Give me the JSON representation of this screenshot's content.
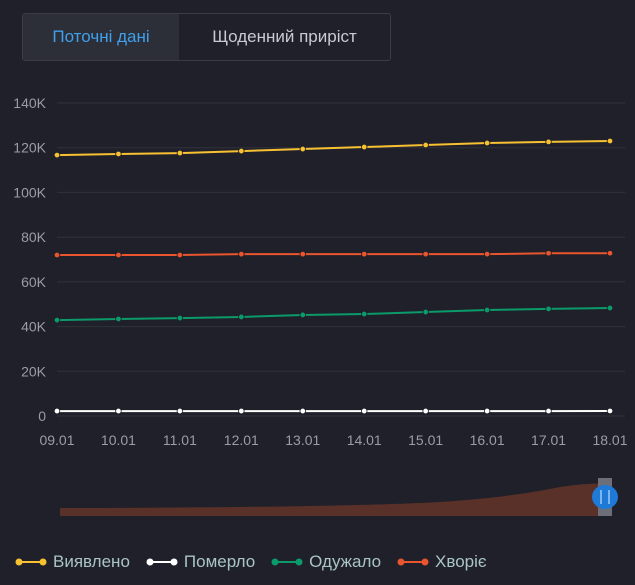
{
  "tabs": [
    {
      "label": "Поточні дані",
      "active": true
    },
    {
      "label": "Щоденний приріст",
      "active": false
    }
  ],
  "chart_data": {
    "type": "line",
    "categories": [
      "09.01",
      "10.01",
      "11.01",
      "12.01",
      "13.01",
      "14.01",
      "15.01",
      "16.01",
      "17.01",
      "18.01"
    ],
    "ylim": [
      0,
      140000
    ],
    "yticks": [
      0,
      20000,
      40000,
      60000,
      80000,
      100000,
      120000,
      140000
    ],
    "ytick_labels": [
      "0",
      "20K",
      "40K",
      "60K",
      "80K",
      "100K",
      "120K",
      "140K"
    ],
    "grid": true,
    "legend": "bottom-left",
    "series": [
      {
        "name": "Виявлено",
        "color": "#f8c132",
        "values": [
          116700,
          117200,
          117600,
          118500,
          119400,
          120300,
          121200,
          122100,
          122600,
          123000
        ]
      },
      {
        "name": "Померло",
        "color": "#ffffff",
        "values": [
          2200,
          2200,
          2200,
          2200,
          2200,
          2200,
          2200,
          2200,
          2200,
          2250
        ]
      },
      {
        "name": "Одужало",
        "color": "#0b9a6a",
        "values": [
          42900,
          43400,
          43800,
          44300,
          45200,
          45600,
          46500,
          47400,
          47900,
          48300
        ]
      },
      {
        "name": "Хворіє",
        "color": "#e8552e",
        "values": [
          72000,
          72000,
          72000,
          72400,
          72400,
          72400,
          72400,
          72400,
          72800,
          72800
        ]
      }
    ]
  },
  "zoom_slider": {
    "range": [
      0.98,
      1.0
    ]
  }
}
